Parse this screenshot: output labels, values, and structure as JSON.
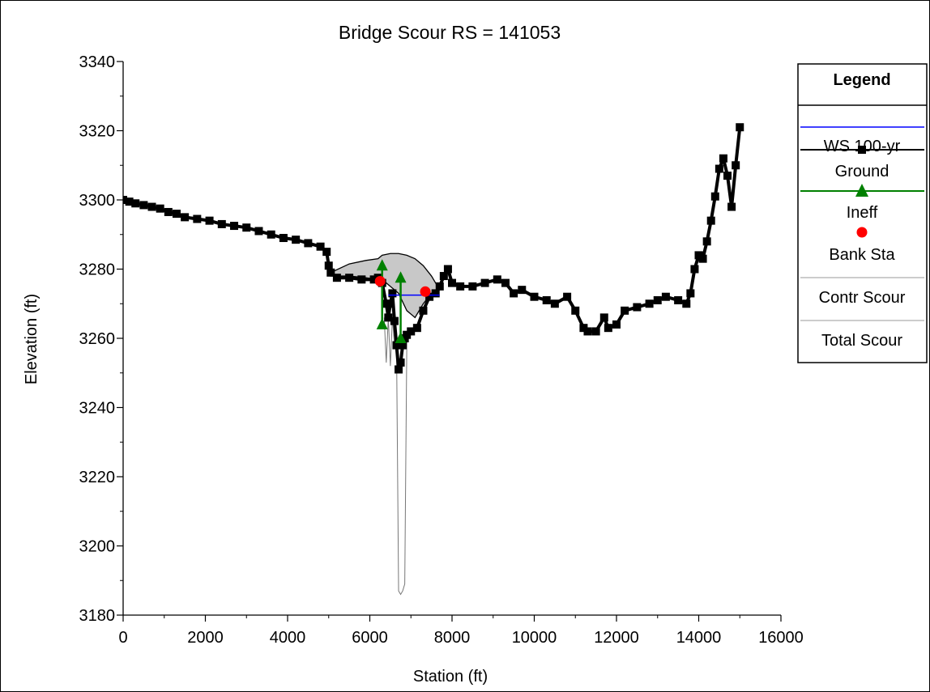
{
  "chart_data": {
    "type": "line",
    "title": "Bridge Scour RS = 141053",
    "xlabel": "Station (ft)",
    "ylabel": "Elevation (ft)",
    "xlim": [
      0,
      16000
    ],
    "ylim": [
      3180,
      3340
    ],
    "x_ticks": [
      "0",
      "2000",
      "4000",
      "6000",
      "8000",
      "10000",
      "12000",
      "14000",
      "16000"
    ],
    "y_ticks": [
      "3180",
      "3200",
      "3220",
      "3240",
      "3260",
      "3280",
      "3300",
      "3320",
      "3340"
    ],
    "grid": false,
    "legend_placement": "right",
    "legend_title": "Legend",
    "series": [
      {
        "name": "WS 100-yr",
        "color": "#0000ff",
        "style": "line",
        "x": [
          6450,
          7700
        ],
        "y": [
          3272.5,
          3272.5
        ]
      },
      {
        "name": "Ground",
        "color": "#000000",
        "style": "line-square-markers",
        "x": [
          0,
          150,
          300,
          500,
          700,
          900,
          1100,
          1300,
          1500,
          1800,
          2100,
          2400,
          2700,
          3000,
          3300,
          3600,
          3900,
          4200,
          4500,
          4800,
          4950,
          5000,
          5050,
          5200,
          5500,
          5800,
          6100,
          6200,
          6300,
          6400,
          6450,
          6500,
          6550,
          6600,
          6650,
          6700,
          6750,
          6800,
          6850,
          6900,
          7000,
          7150,
          7300,
          7450,
          7600,
          7700,
          7800,
          7900,
          8000,
          8200,
          8500,
          8800,
          9100,
          9300,
          9500,
          9700,
          10000,
          10300,
          10500,
          10800,
          11000,
          11200,
          11300,
          11500,
          11700,
          11800,
          12000,
          12200,
          12500,
          12800,
          13000,
          13200,
          13500,
          13700,
          13800,
          13900,
          14000,
          14100,
          14200,
          14300,
          14400,
          14500,
          14600,
          14700,
          14800,
          14900,
          15000
        ],
        "y": [
          3300,
          3299.5,
          3299,
          3298.5,
          3298,
          3297.5,
          3296.5,
          3296,
          3295,
          3294.5,
          3294,
          3293,
          3292.5,
          3292,
          3291,
          3290,
          3289,
          3288.5,
          3287.5,
          3286.5,
          3285,
          3281,
          3279,
          3277.5,
          3277.5,
          3277,
          3277,
          3277.5,
          3276,
          3270,
          3266,
          3270,
          3273,
          3265,
          3258,
          3251,
          3253,
          3258,
          3260,
          3261,
          3262,
          3263,
          3268,
          3272,
          3273,
          3275,
          3278,
          3280,
          3276,
          3275,
          3275,
          3276,
          3277,
          3276,
          3273,
          3274,
          3272,
          3271,
          3270,
          3272,
          3268,
          3263,
          3262,
          3262,
          3266,
          3263,
          3264,
          3268,
          3269,
          3270,
          3271,
          3272,
          3271,
          3270,
          3273,
          3280,
          3284,
          3283,
          3288,
          3294,
          3301,
          3309,
          3312,
          3307,
          3298,
          3310,
          3321
        ]
      },
      {
        "name": "Ineff",
        "color": "#008000",
        "style": "line-triangle-markers",
        "segments": [
          {
            "x": [
              6300,
              6300
            ],
            "y": [
              3264,
              3281
            ]
          },
          {
            "x": [
              6750,
              6750
            ],
            "y": [
              3260,
              3277.5
            ]
          }
        ]
      },
      {
        "name": "Bank Sta",
        "color": "#ff0000",
        "style": "circle-markers",
        "x": [
          6250,
          7350
        ],
        "y": [
          3276.5,
          3273.5
        ]
      },
      {
        "name": "Contr Scour",
        "color": "#999999",
        "style": "thin-line",
        "x": [
          6350,
          6400,
          6450,
          6500,
          6550,
          6600
        ],
        "y": [
          3266,
          3253,
          3266,
          3252,
          3266,
          3258
        ]
      },
      {
        "name": "Total Scour",
        "color": "#999999",
        "style": "thin-line",
        "x": [
          6650,
          6700,
          6750,
          6800,
          6850,
          6900
        ],
        "y": [
          3258,
          3187,
          3186,
          3187,
          3189,
          3259
        ]
      }
    ],
    "bridge_deck": {
      "color": "#c8c8c8",
      "x": [
        5050,
        5500,
        5900,
        6200,
        6300,
        6500,
        6700,
        6900,
        7100,
        7300,
        7500,
        7700
      ],
      "top": [
        3279,
        3281.5,
        3282.5,
        3283,
        3284,
        3284.5,
        3284.5,
        3284,
        3283,
        3281,
        3278,
        3274
      ],
      "bottom": [
        3278,
        3278,
        3277.5,
        3277,
        3277,
        3275,
        3273,
        3268,
        3266,
        3270,
        3273,
        3274
      ]
    }
  }
}
